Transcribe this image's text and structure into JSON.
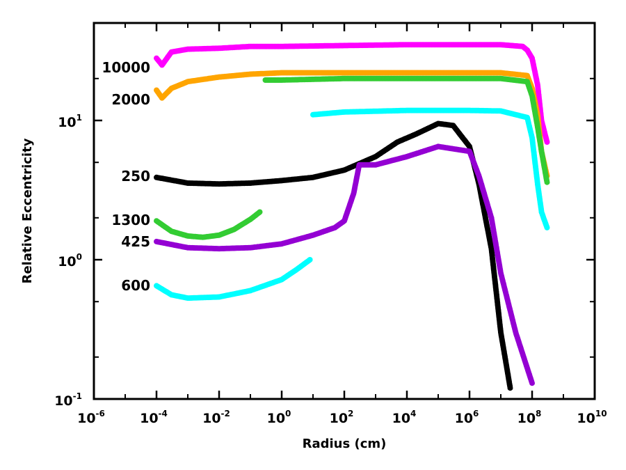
{
  "chart_data": {
    "type": "scatter",
    "title": "",
    "xlabel": "Radius (cm)",
    "ylabel": "Relative Eccentricity",
    "xscale": "log",
    "yscale": "log",
    "xlim": [
      1e-06,
      10000000000.0
    ],
    "ylim": [
      0.1,
      50
    ],
    "grid": false,
    "x_ticks": [
      {
        "base": "10",
        "exp": "-6",
        "value": 1e-06
      },
      {
        "base": "10",
        "exp": "-4",
        "value": 0.0001
      },
      {
        "base": "10",
        "exp": "-2",
        "value": 0.01
      },
      {
        "base": "10",
        "exp": "0",
        "value": 1
      },
      {
        "base": "10",
        "exp": "2",
        "value": 100
      },
      {
        "base": "10",
        "exp": "4",
        "value": 10000.0
      },
      {
        "base": "10",
        "exp": "6",
        "value": 1000000.0
      },
      {
        "base": "10",
        "exp": "8",
        "value": 100000000.0
      },
      {
        "base": "10",
        "exp": "10",
        "value": 10000000000.0
      }
    ],
    "y_ticks": [
      {
        "base": "10",
        "exp": "-1",
        "value": 0.1
      },
      {
        "base": "10",
        "exp": "0",
        "value": 1
      },
      {
        "base": "10",
        "exp": "1",
        "value": 10
      }
    ],
    "series": [
      {
        "name": "10000",
        "color": "#ff00ff",
        "x": [
          0.0001,
          0.00015,
          0.0003,
          0.001,
          0.01,
          0.1,
          1,
          100,
          10000,
          1000000,
          10000000,
          50000000,
          70000000,
          100000000,
          150000000,
          200000000,
          300000000
        ],
        "y": [
          28,
          25,
          31,
          32.5,
          33,
          34,
          34,
          34.5,
          35,
          35,
          35,
          34,
          32,
          28,
          18,
          10,
          7
        ]
      },
      {
        "name": "2000",
        "color": "#ffa500",
        "x": [
          0.0001,
          0.00015,
          0.0003,
          0.001,
          0.01,
          0.1,
          1,
          100,
          10000,
          1000000,
          10000000,
          70000000,
          100000000,
          150000000,
          200000000,
          300000000
        ],
        "y": [
          16.5,
          14.5,
          17,
          19,
          20.5,
          21.5,
          22,
          22,
          22,
          22,
          22,
          21,
          17,
          11,
          6,
          4
        ]
      },
      {
        "name": "1300",
        "color": "#33cc33",
        "x": [
          0.0001,
          0.0003,
          0.001,
          0.003,
          0.01,
          0.03,
          0.1,
          0.2,
          0.3,
          1,
          100,
          10000,
          1000000,
          10000000,
          70000000,
          100000000,
          150000000,
          200000000,
          300000000
        ],
        "y": [
          1.9,
          1.6,
          1.48,
          1.45,
          1.5,
          1.65,
          1.95,
          2.2,
          19.5,
          19.5,
          20,
          20,
          20,
          20,
          19,
          15,
          9,
          6,
          3.6
        ]
      },
      {
        "name": "600",
        "color": "#00ffff",
        "x": [
          0.0001,
          0.0003,
          0.001,
          0.01,
          0.1,
          1,
          3,
          8,
          10,
          100,
          10000,
          1000000,
          10000000,
          70000000,
          100000000,
          150000000,
          200000000,
          300000000
        ],
        "y": [
          0.65,
          0.56,
          0.53,
          0.54,
          0.6,
          0.72,
          0.85,
          1.0,
          11,
          11.5,
          11.8,
          11.8,
          11.7,
          10.5,
          7.5,
          3.5,
          2.2,
          1.7
        ]
      },
      {
        "name": "250",
        "color": "#000000",
        "x": [
          0.0001,
          0.001,
          0.01,
          0.1,
          1,
          10,
          100,
          1000,
          5000,
          20000,
          100000,
          300000,
          1000000,
          2000000,
          5000000,
          10000000,
          20000000
        ],
        "y": [
          3.9,
          3.55,
          3.5,
          3.55,
          3.7,
          3.9,
          4.4,
          5.5,
          7,
          8,
          9.5,
          9.2,
          6.5,
          3.5,
          1.2,
          0.3,
          0.12
        ]
      },
      {
        "name": "425",
        "color": "#9400d3",
        "x": [
          0.0001,
          0.001,
          0.01,
          0.1,
          1,
          10,
          50,
          100,
          200,
          300,
          1000,
          10000,
          100000,
          1000000,
          2000000,
          5000000,
          10000000,
          30000000,
          100000000
        ],
        "y": [
          1.35,
          1.22,
          1.2,
          1.22,
          1.3,
          1.5,
          1.7,
          1.9,
          3,
          4.8,
          4.8,
          5.5,
          6.5,
          6,
          4,
          2,
          0.8,
          0.3,
          0.13
        ]
      }
    ],
    "annotations": [
      {
        "text": "10000",
        "series": "10000"
      },
      {
        "text": "2000",
        "series": "2000"
      },
      {
        "text": "250",
        "series": "250"
      },
      {
        "text": "1300",
        "series": "1300"
      },
      {
        "text": "425",
        "series": "425"
      },
      {
        "text": "600",
        "series": "600"
      }
    ]
  }
}
